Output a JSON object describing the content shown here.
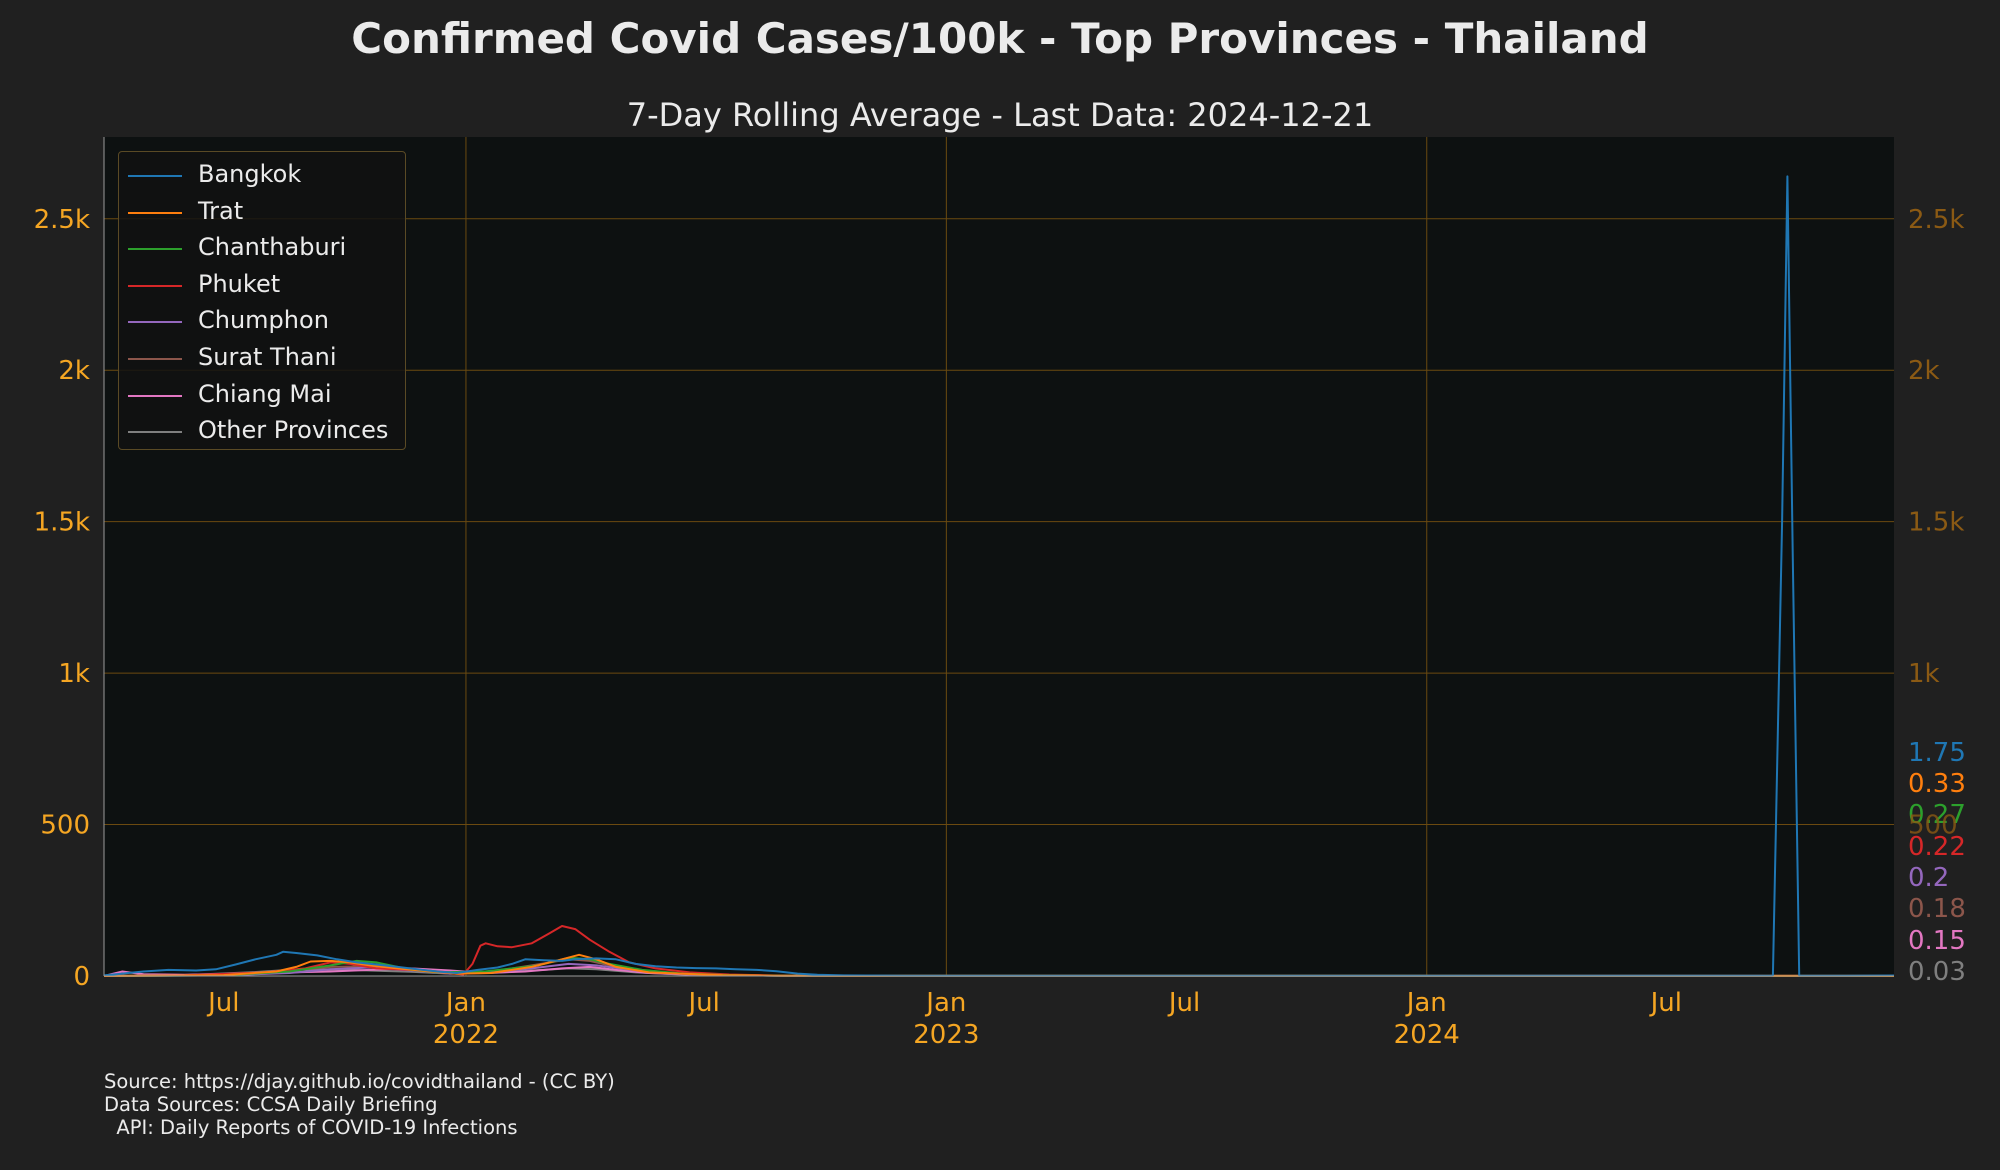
{
  "chart_data": {
    "type": "line",
    "title": "Confirmed Covid Cases/100k - Top Provinces - Thailand",
    "subtitle": "7-Day Rolling Average - Last Data: 2024-12-21",
    "xlabel": "",
    "ylabel": "",
    "xlim": [
      "2021-04-01",
      "2024-12-21"
    ],
    "ylim": [
      0,
      2770
    ],
    "y_ticks": [
      {
        "value": 0,
        "label": "0"
      },
      {
        "value": 500,
        "label": "500"
      },
      {
        "value": 1000,
        "label": "1k"
      },
      {
        "value": 1500,
        "label": "1.5k"
      },
      {
        "value": 2000,
        "label": "2k"
      },
      {
        "value": 2500,
        "label": "2.5k"
      }
    ],
    "right_y_ticks": [
      {
        "value": 1000,
        "label": "1k"
      },
      {
        "value": 1500,
        "label": "1.5k"
      },
      {
        "value": 2000,
        "label": "2k"
      },
      {
        "value": 2500,
        "label": "2.5k"
      }
    ],
    "x_ticks": [
      {
        "date": "2021-07-01",
        "label": "Jul",
        "year": ""
      },
      {
        "date": "2022-01-01",
        "label": "Jan",
        "year": "2022"
      },
      {
        "date": "2022-07-01",
        "label": "Jul",
        "year": ""
      },
      {
        "date": "2023-01-01",
        "label": "Jan",
        "year": "2023"
      },
      {
        "date": "2023-07-01",
        "label": "Jul",
        "year": ""
      },
      {
        "date": "2024-01-01",
        "label": "Jan",
        "year": "2024"
      },
      {
        "date": "2024-07-01",
        "label": "Jul",
        "year": ""
      }
    ],
    "grid": true,
    "legend_position": "top-left",
    "series": [
      {
        "name": "Bangkok",
        "color": "#1f77b4",
        "end_label": "1.75",
        "points": [
          [
            "2021-04-01",
            2
          ],
          [
            "2021-04-15",
            8
          ],
          [
            "2021-05-01",
            15
          ],
          [
            "2021-05-20",
            20
          ],
          [
            "2021-06-10",
            18
          ],
          [
            "2021-06-25",
            22
          ],
          [
            "2021-07-10",
            38
          ],
          [
            "2021-07-25",
            55
          ],
          [
            "2021-08-10",
            70
          ],
          [
            "2021-08-15",
            80
          ],
          [
            "2021-08-25",
            76
          ],
          [
            "2021-09-10",
            68
          ],
          [
            "2021-09-25",
            55
          ],
          [
            "2021-10-10",
            45
          ],
          [
            "2021-10-25",
            38
          ],
          [
            "2021-11-10",
            30
          ],
          [
            "2021-11-25",
            22
          ],
          [
            "2021-12-10",
            15
          ],
          [
            "2021-12-25",
            10
          ],
          [
            "2022-01-10",
            20
          ],
          [
            "2022-01-25",
            28
          ],
          [
            "2022-02-05",
            40
          ],
          [
            "2022-02-15",
            55
          ],
          [
            "2022-03-01",
            52
          ],
          [
            "2022-03-15",
            50
          ],
          [
            "2022-03-25",
            55
          ],
          [
            "2022-04-10",
            58
          ],
          [
            "2022-04-25",
            55
          ],
          [
            "2022-05-10",
            40
          ],
          [
            "2022-05-25",
            32
          ],
          [
            "2022-06-10",
            28
          ],
          [
            "2022-06-25",
            26
          ],
          [
            "2022-07-10",
            25
          ],
          [
            "2022-07-25",
            22
          ],
          [
            "2022-08-10",
            20
          ],
          [
            "2022-08-25",
            16
          ],
          [
            "2022-09-10",
            8
          ],
          [
            "2022-09-25",
            4
          ],
          [
            "2022-10-15",
            2
          ],
          [
            "2022-12-01",
            1
          ],
          [
            "2023-06-01",
            1
          ],
          [
            "2024-01-01",
            1
          ],
          [
            "2024-06-01",
            1
          ],
          [
            "2024-09-20",
            1
          ],
          [
            "2024-09-27",
            1500
          ],
          [
            "2024-10-01",
            2640
          ],
          [
            "2024-10-05",
            1400
          ],
          [
            "2024-10-10",
            1
          ],
          [
            "2024-11-15",
            1
          ],
          [
            "2024-12-21",
            1.75
          ]
        ]
      },
      {
        "name": "Trat",
        "color": "#ff7f0e",
        "end_label": "0.33",
        "points": [
          [
            "2021-04-01",
            0
          ],
          [
            "2021-07-01",
            3
          ],
          [
            "2021-08-10",
            15
          ],
          [
            "2021-08-25",
            30
          ],
          [
            "2021-09-05",
            48
          ],
          [
            "2021-09-20",
            50
          ],
          [
            "2021-10-05",
            45
          ],
          [
            "2021-10-20",
            35
          ],
          [
            "2021-11-10",
            25
          ],
          [
            "2021-12-05",
            15
          ],
          [
            "2021-12-25",
            8
          ],
          [
            "2022-01-20",
            10
          ],
          [
            "2022-02-20",
            30
          ],
          [
            "2022-03-15",
            55
          ],
          [
            "2022-03-28",
            70
          ],
          [
            "2022-04-10",
            55
          ],
          [
            "2022-04-25",
            30
          ],
          [
            "2022-05-20",
            12
          ],
          [
            "2022-06-25",
            6
          ],
          [
            "2022-07-15",
            3
          ],
          [
            "2022-09-01",
            1
          ],
          [
            "2024-12-21",
            0.33
          ]
        ]
      },
      {
        "name": "Chanthaburi",
        "color": "#2ca02c",
        "end_label": "0.27",
        "points": [
          [
            "2021-04-01",
            0
          ],
          [
            "2021-07-01",
            2
          ],
          [
            "2021-08-20",
            15
          ],
          [
            "2021-09-20",
            35
          ],
          [
            "2021-10-10",
            50
          ],
          [
            "2021-10-25",
            45
          ],
          [
            "2021-11-10",
            30
          ],
          [
            "2021-11-20",
            20
          ],
          [
            "2021-12-10",
            12
          ],
          [
            "2022-01-15",
            15
          ],
          [
            "2022-02-25",
            35
          ],
          [
            "2022-03-20",
            60
          ],
          [
            "2022-04-05",
            55
          ],
          [
            "2022-04-20",
            40
          ],
          [
            "2022-05-15",
            20
          ],
          [
            "2022-06-15",
            8
          ],
          [
            "2022-07-20",
            3
          ],
          [
            "2022-09-01",
            1
          ],
          [
            "2024-12-21",
            0.27
          ]
        ]
      },
      {
        "name": "Phuket",
        "color": "#d62728",
        "end_label": "0.22",
        "points": [
          [
            "2021-04-01",
            0
          ],
          [
            "2021-06-01",
            2
          ],
          [
            "2021-08-01",
            12
          ],
          [
            "2021-09-01",
            25
          ],
          [
            "2021-09-20",
            45
          ],
          [
            "2021-10-05",
            40
          ],
          [
            "2021-10-25",
            25
          ],
          [
            "2021-11-20",
            20
          ],
          [
            "2021-12-15",
            12
          ],
          [
            "2021-12-30",
            5
          ],
          [
            "2022-01-06",
            40
          ],
          [
            "2022-01-12",
            100
          ],
          [
            "2022-01-16",
            108
          ],
          [
            "2022-01-25",
            98
          ],
          [
            "2022-02-05",
            95
          ],
          [
            "2022-02-20",
            108
          ],
          [
            "2022-03-05",
            140
          ],
          [
            "2022-03-15",
            165
          ],
          [
            "2022-03-25",
            155
          ],
          [
            "2022-04-05",
            120
          ],
          [
            "2022-04-20",
            80
          ],
          [
            "2022-05-05",
            45
          ],
          [
            "2022-05-25",
            25
          ],
          [
            "2022-06-20",
            12
          ],
          [
            "2022-07-20",
            5
          ],
          [
            "2022-09-01",
            1
          ],
          [
            "2024-12-21",
            0.22
          ]
        ]
      },
      {
        "name": "Chumphon",
        "color": "#9467bd",
        "end_label": "0.2",
        "points": [
          [
            "2021-04-01",
            0
          ],
          [
            "2021-07-01",
            2
          ],
          [
            "2021-08-20",
            10
          ],
          [
            "2021-09-20",
            22
          ],
          [
            "2021-10-20",
            28
          ],
          [
            "2021-11-20",
            18
          ],
          [
            "2021-12-20",
            8
          ],
          [
            "2022-01-20",
            12
          ],
          [
            "2022-02-20",
            25
          ],
          [
            "2022-03-20",
            40
          ],
          [
            "2022-04-10",
            35
          ],
          [
            "2022-05-10",
            18
          ],
          [
            "2022-06-10",
            8
          ],
          [
            "2022-07-10",
            3
          ],
          [
            "2022-09-01",
            1
          ],
          [
            "2024-12-21",
            0.2
          ]
        ]
      },
      {
        "name": "Surat Thani",
        "color": "#8c564b",
        "end_label": "0.18",
        "points": [
          [
            "2021-04-01",
            0
          ],
          [
            "2021-07-01",
            3
          ],
          [
            "2021-08-20",
            18
          ],
          [
            "2021-09-20",
            30
          ],
          [
            "2021-10-20",
            32
          ],
          [
            "2021-11-20",
            22
          ],
          [
            "2021-12-20",
            12
          ],
          [
            "2022-01-20",
            15
          ],
          [
            "2022-02-20",
            35
          ],
          [
            "2022-03-20",
            55
          ],
          [
            "2022-04-05",
            50
          ],
          [
            "2022-04-25",
            30
          ],
          [
            "2022-05-20",
            15
          ],
          [
            "2022-06-20",
            6
          ],
          [
            "2022-08-01",
            2
          ],
          [
            "2022-10-01",
            1
          ],
          [
            "2024-12-21",
            0.18
          ]
        ]
      },
      {
        "name": "Chiang Mai",
        "color": "#e377c2",
        "end_label": "0.15",
        "points": [
          [
            "2021-04-01",
            0
          ],
          [
            "2021-04-15",
            15
          ],
          [
            "2021-05-01",
            6
          ],
          [
            "2021-06-01",
            4
          ],
          [
            "2021-07-15",
            8
          ],
          [
            "2021-08-20",
            12
          ],
          [
            "2021-09-20",
            15
          ],
          [
            "2021-10-20",
            20
          ],
          [
            "2021-11-20",
            25
          ],
          [
            "2021-12-20",
            18
          ],
          [
            "2022-01-15",
            10
          ],
          [
            "2022-02-15",
            15
          ],
          [
            "2022-03-15",
            25
          ],
          [
            "2022-04-05",
            30
          ],
          [
            "2022-04-25",
            20
          ],
          [
            "2022-05-20",
            10
          ],
          [
            "2022-06-20",
            5
          ],
          [
            "2022-08-01",
            2
          ],
          [
            "2022-10-01",
            1
          ],
          [
            "2024-12-21",
            0.15
          ]
        ]
      },
      {
        "name": "Other Provinces",
        "color": "#7f7f7f",
        "end_label": "0.03",
        "points": [
          [
            "2021-04-01",
            0
          ],
          [
            "2021-06-01",
            3
          ],
          [
            "2021-07-20",
            12
          ],
          [
            "2021-08-20",
            20
          ],
          [
            "2021-09-20",
            22
          ],
          [
            "2021-10-20",
            18
          ],
          [
            "2021-11-20",
            14
          ],
          [
            "2021-12-20",
            8
          ],
          [
            "2022-01-20",
            10
          ],
          [
            "2022-02-20",
            18
          ],
          [
            "2022-03-20",
            25
          ],
          [
            "2022-04-10",
            22
          ],
          [
            "2022-05-10",
            12
          ],
          [
            "2022-06-10",
            6
          ],
          [
            "2022-07-10",
            3
          ],
          [
            "2022-09-01",
            1
          ],
          [
            "2024-12-21",
            0.03
          ]
        ]
      }
    ],
    "right_axis_stray_label": "500",
    "colors": {
      "background": "#202020",
      "plot_background": "#0d1111",
      "axis_text": "#f5a623",
      "right_axis_text": "#8b5a14",
      "grid": "#6b4a10"
    }
  },
  "source_lines": [
    "Source: https://djay.github.io/covidthailand - (CC BY)",
    "Data Sources: CCSA Daily Briefing",
    "  API: Daily Reports of COVID-19 Infections"
  ]
}
